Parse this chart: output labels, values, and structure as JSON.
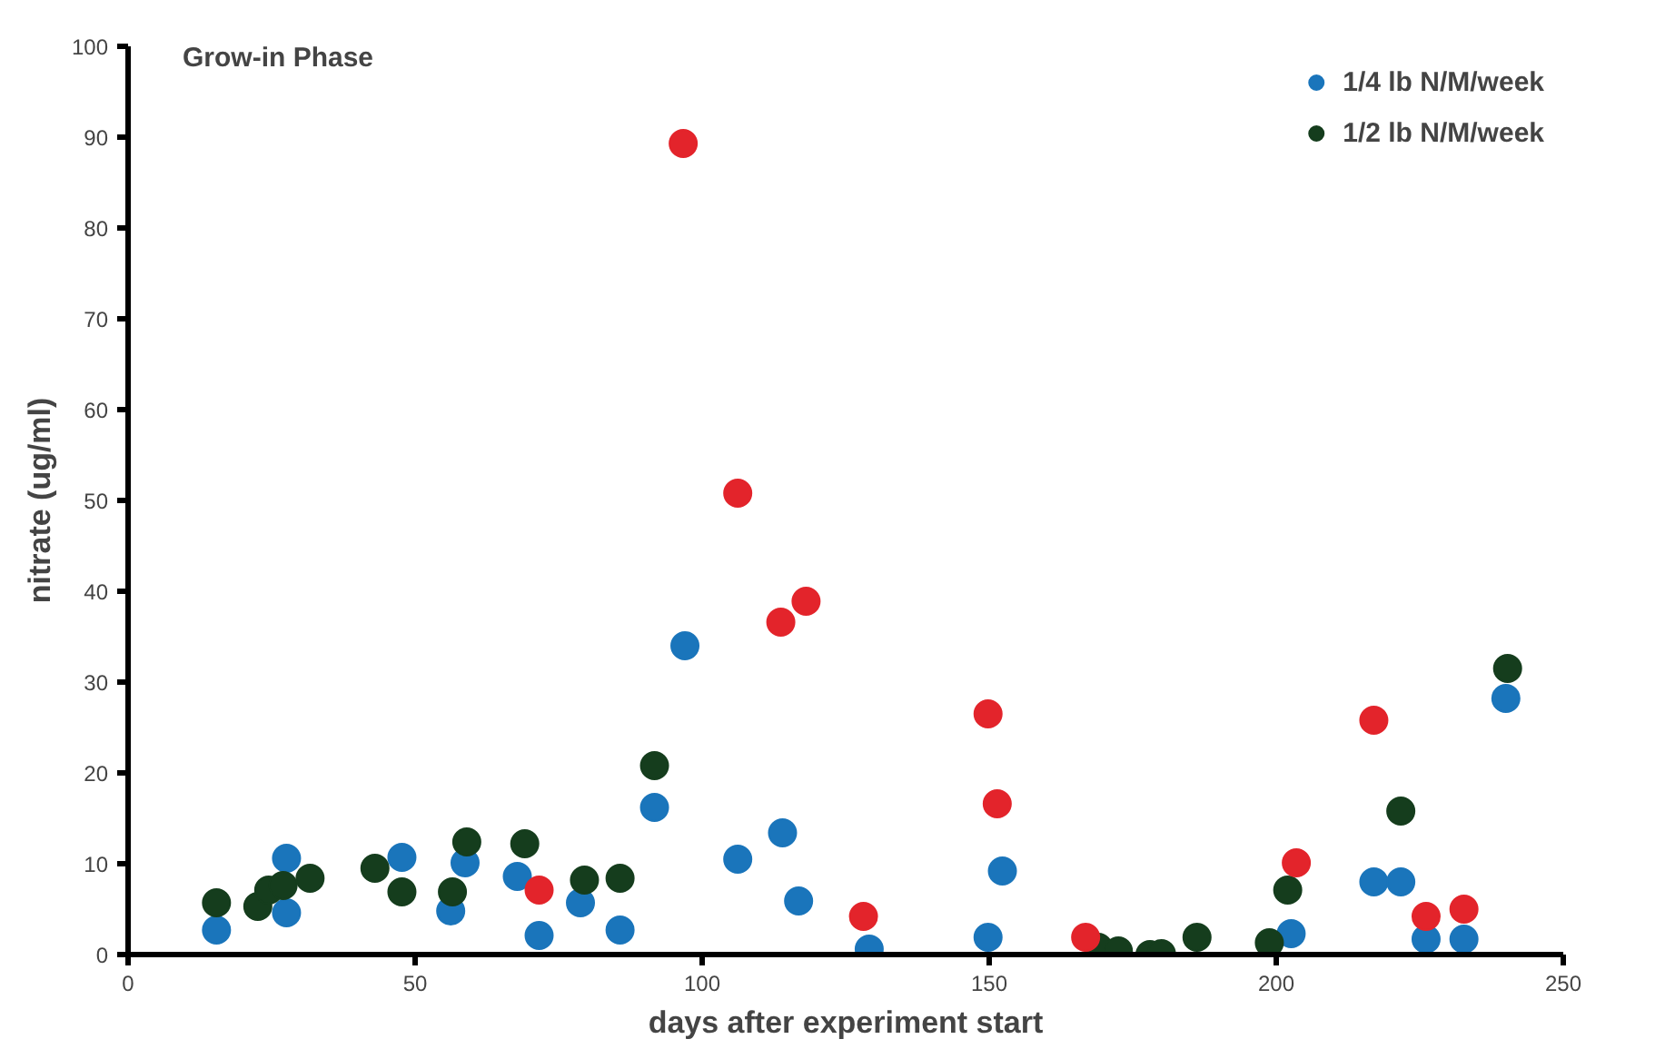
{
  "chart_data": {
    "type": "scatter",
    "title": "Grow-in Phase",
    "xlabel": "days after experiment start",
    "ylabel": "nitrate (ug/ml)",
    "xlim": [
      0,
      250
    ],
    "ylim": [
      0,
      100
    ],
    "xticks": [
      0,
      50,
      100,
      150,
      200,
      250
    ],
    "yticks": [
      0,
      10,
      20,
      30,
      40,
      50,
      60,
      70,
      80,
      90,
      100
    ],
    "grid": false,
    "legend": "top right",
    "marker": "circle",
    "series": [
      {
        "name": "1/4 lb N/M/week",
        "color": "#1a75bb",
        "x": [
          15.4,
          27.6,
          27.6,
          47.7,
          56.2,
          58.7,
          67.8,
          71.6,
          78.8,
          85.7,
          91.7,
          97,
          106.2,
          114,
          116.8,
          129.1,
          149.8,
          152.3,
          202.6,
          217,
          221.7,
          226.1,
          232.7,
          240
        ],
        "values": [
          2.7,
          10.6,
          4.6,
          10.7,
          4.8,
          10.1,
          8.6,
          2.1,
          5.7,
          2.7,
          16.2,
          34,
          10.5,
          13.4,
          5.9,
          0.6,
          1.9,
          9.2,
          2.3,
          8,
          8,
          1.7,
          1.7,
          28.2
        ]
      },
      {
        "name": "1/2 lb N/M/week",
        "color": "#153d1d",
        "x": [
          15.4,
          22.6,
          24.5,
          27,
          31.7,
          43,
          47.7,
          59,
          56.5,
          69.1,
          79.5,
          85.7,
          91.7,
          169,
          172.5,
          178,
          180,
          186.2,
          198.8,
          202,
          221.7,
          240.3
        ],
        "values": [
          5.7,
          5.3,
          7.1,
          7.6,
          8.4,
          9.5,
          6.9,
          12.4,
          6.9,
          12.2,
          8.2,
          8.4,
          20.8,
          0.8,
          0.4,
          0,
          0.1,
          1.9,
          1.3,
          7.1,
          15.8,
          31.5
        ]
      },
      {
        "color": "#e3242b",
        "x": [
          71.6,
          96.7,
          106.2,
          113.7,
          118.1,
          128.1,
          149.8,
          151.4,
          166.8,
          203.5,
          217,
          226.1,
          232.7
        ],
        "values": [
          7.1,
          89.3,
          50.8,
          36.6,
          38.9,
          4.2,
          26.5,
          16.6,
          1.9,
          10.1,
          25.8,
          4.2,
          5.0
        ]
      }
    ]
  }
}
